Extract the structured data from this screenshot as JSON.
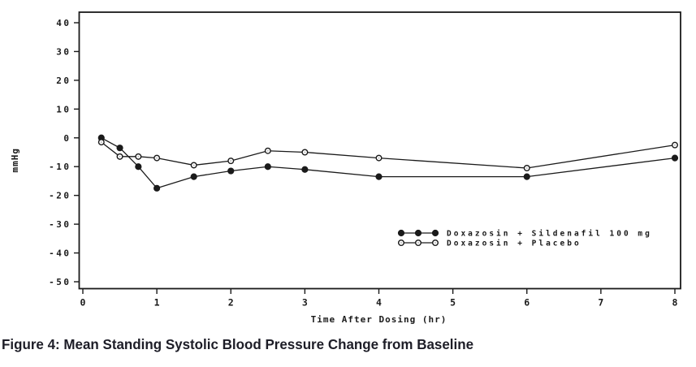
{
  "figure": {
    "caption": "Figure 4: Mean Standing Systolic Blood Pressure Change from Baseline"
  },
  "chart_data": {
    "type": "line",
    "title": "",
    "xlabel": "Time After Dosing (hr)",
    "ylabel": "mmHg",
    "xlim": [
      0,
      8
    ],
    "ylim": [
      -50,
      40
    ],
    "x_ticks": [
      0,
      1,
      2,
      3,
      4,
      5,
      6,
      7,
      8
    ],
    "y_ticks": [
      40,
      30,
      20,
      10,
      0,
      -10,
      -20,
      -30,
      -40,
      -50
    ],
    "grid": false,
    "legend_position": "inside-lower-right",
    "frame": true,
    "line_color": "#1a1a1a",
    "x": [
      0.25,
      0.5,
      0.75,
      1,
      1.5,
      2,
      2.5,
      3,
      4,
      6,
      8
    ],
    "series": [
      {
        "name": "Doxazosin + Sildenafil 100 mg",
        "marker": "filled-circle",
        "color": "#1a1a1a",
        "values": [
          0,
          -3.5,
          -10,
          -17.5,
          -13.5,
          -11.5,
          -10,
          -11,
          -13.5,
          -13.5,
          -7
        ]
      },
      {
        "name": "Doxazosin + Placebo",
        "marker": "open-circle",
        "color": "#1a1a1a",
        "values": [
          -1.5,
          -6.5,
          -6.5,
          -7,
          -9.5,
          -8,
          -4.5,
          -5,
          -7,
          -10.5,
          -2.5
        ]
      }
    ]
  }
}
